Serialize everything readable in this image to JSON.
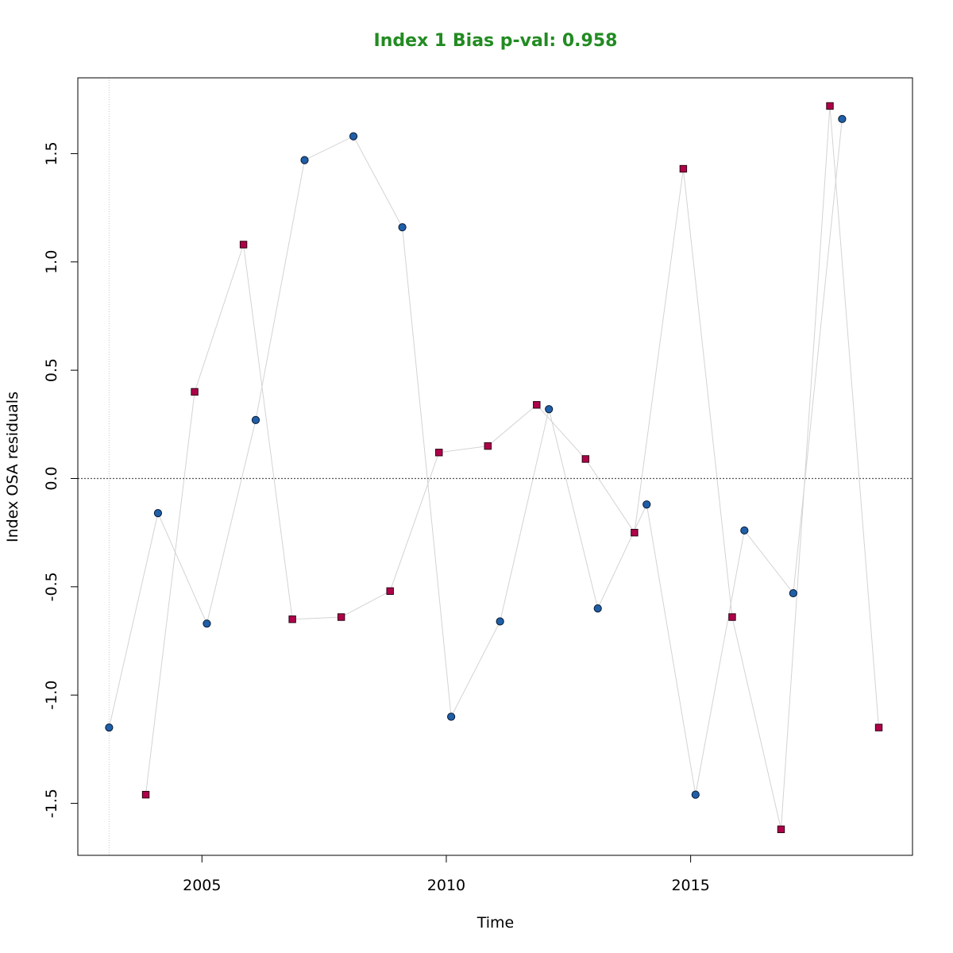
{
  "chart_data": {
    "type": "scatter",
    "title": "Index 1 Bias p-val: 0.958",
    "title_color": "#228B22",
    "xlabel": "Time",
    "ylabel": "Index OSA residuals",
    "xlim": [
      2002.46,
      2019.54
    ],
    "ylim": [
      -1.74,
      1.85
    ],
    "x_ticks": [
      2005,
      2010,
      2015
    ],
    "x_tick_labels": [
      "2005",
      "2010",
      "2015"
    ],
    "y_ticks": [
      -1.5,
      -1.0,
      -0.5,
      0.0,
      0.5,
      1.0,
      1.5
    ],
    "y_tick_labels": [
      "-1.5",
      "-1.0",
      "-0.5",
      "0.0",
      "0.5",
      "1.0",
      "1.5"
    ],
    "reference_hline": 0,
    "reference_vline": 2003.1,
    "line_color": "#d3d3d3",
    "grid": false,
    "series": [
      {
        "marker": "circle",
        "color": "#1f5fa8",
        "x": [
          2003.1,
          2004.1,
          2005.1,
          2006.1,
          2007.1,
          2008.1,
          2009.1,
          2010.1,
          2011.1,
          2012.1,
          2013.1,
          2014.1,
          2015.1,
          2016.1,
          2017.1,
          2018.1
        ],
        "y": [
          -1.15,
          -0.16,
          -0.67,
          0.27,
          1.47,
          1.58,
          1.16,
          -1.1,
          -0.66,
          0.32,
          -0.6,
          -0.12,
          -1.46,
          -0.24,
          -0.53,
          1.66
        ]
      },
      {
        "marker": "square",
        "color": "#b0004a",
        "x": [
          2003.85,
          2004.85,
          2005.85,
          2006.85,
          2007.85,
          2008.85,
          2009.85,
          2010.85,
          2011.85,
          2012.85,
          2013.85,
          2014.85,
          2015.85,
          2016.85,
          2017.85,
          2018.85
        ],
        "y": [
          -1.46,
          0.4,
          1.08,
          -0.65,
          -0.64,
          -0.52,
          0.12,
          0.15,
          0.34,
          0.09,
          -0.25,
          1.43,
          -0.64,
          -1.62,
          1.72,
          -1.15
        ]
      }
    ]
  }
}
